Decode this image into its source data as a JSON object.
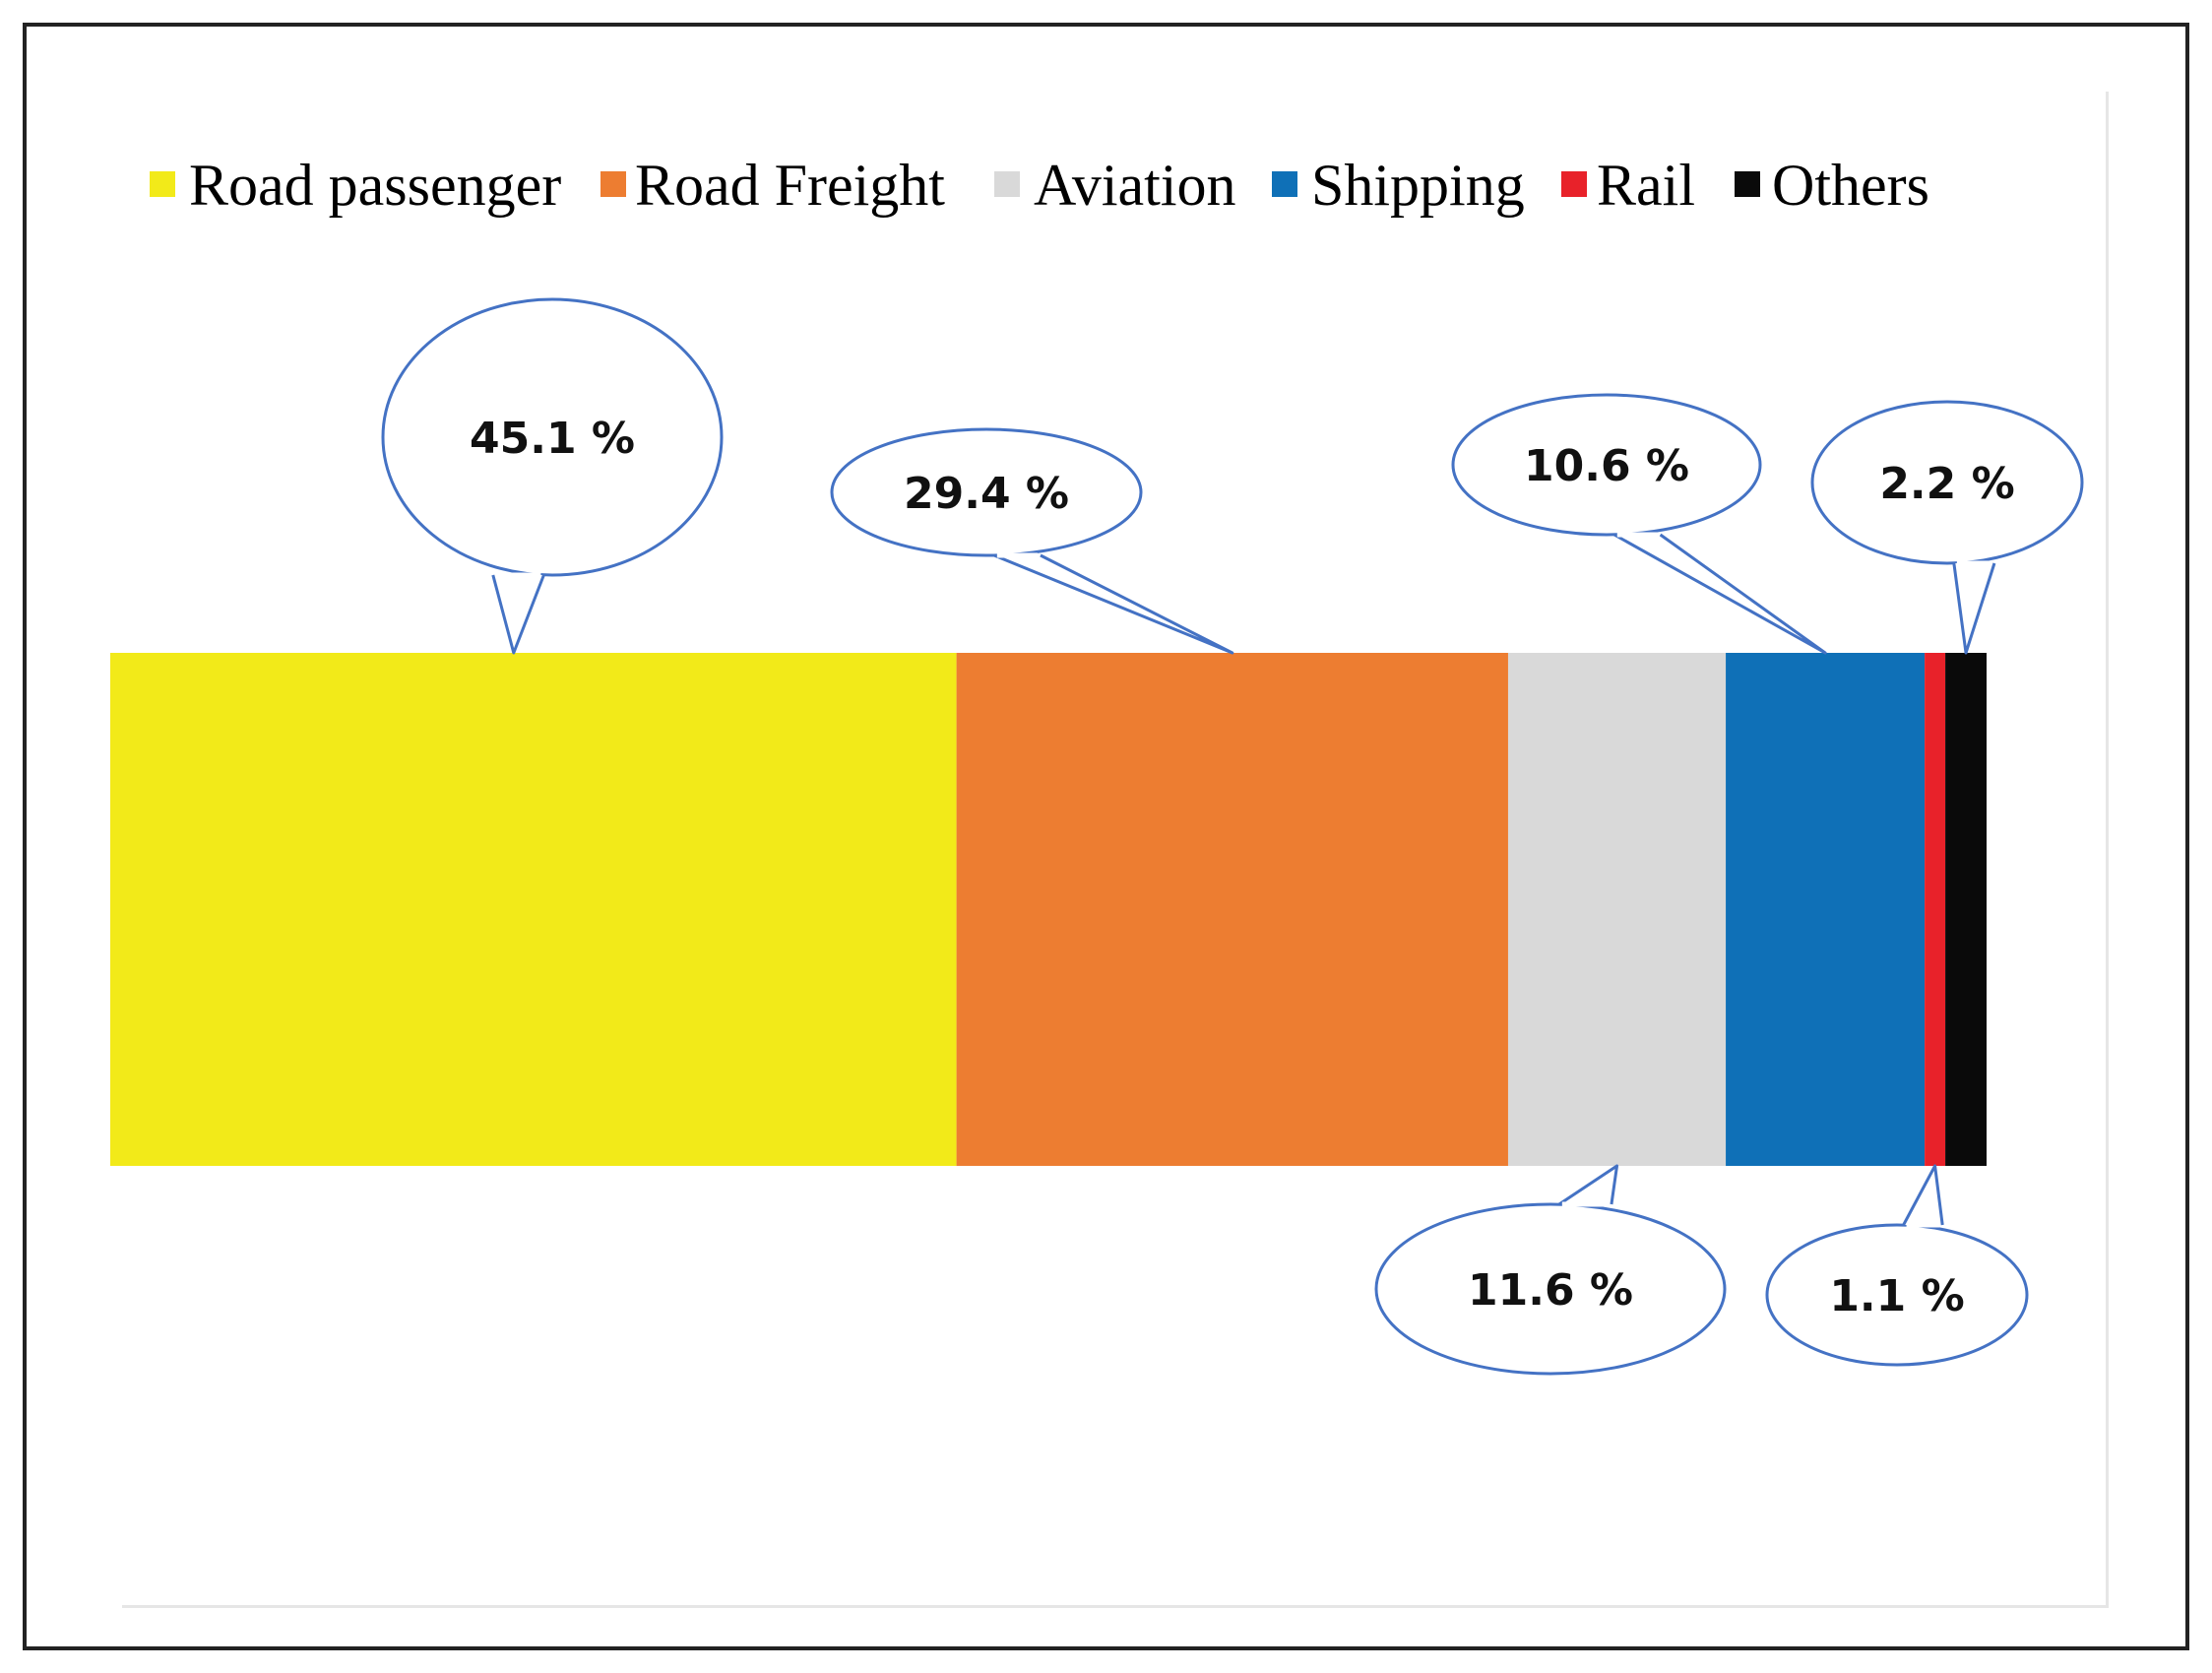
{
  "chart_data": {
    "type": "bar",
    "orientation": "horizontal-stacked",
    "categories": [
      "Road passenger",
      "Road Freight",
      "Aviation",
      "Shipping",
      "Rail",
      "Others"
    ],
    "values": [
      45.1,
      29.4,
      11.6,
      10.6,
      1.1,
      2.2
    ],
    "data_labels": [
      "45.1 %",
      "29.4 %",
      "11.6 %",
      "10.6 %",
      "1.1 %",
      "2.2 %"
    ],
    "colors": [
      "#f2ea19",
      "#ed7d31",
      "#d9d9d9",
      "#0f70b7",
      "#e8222a",
      "#0a0a0a"
    ],
    "title": "",
    "xlabel": "",
    "ylabel": "",
    "xlim": [
      0,
      100
    ],
    "grid": false,
    "legend_position": "top",
    "label_style": "speech-bubble callouts",
    "callout_border_color": "#4472c4"
  }
}
